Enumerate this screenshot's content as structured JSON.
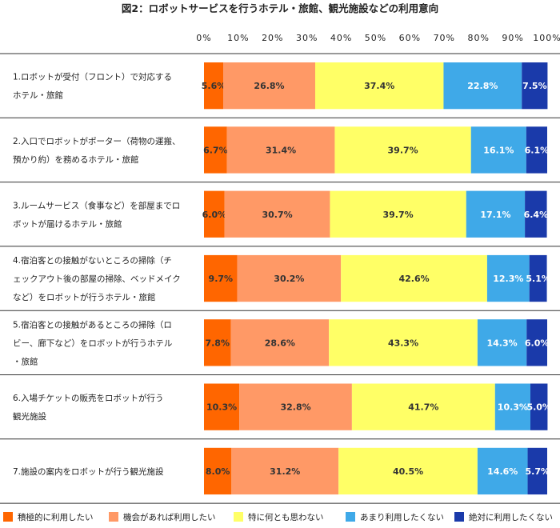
{
  "chart_data": {
    "type": "bar",
    "stacked": true,
    "orientation": "horizontal",
    "title": "図2：ロボットサービスを行うホテル・旅館、観光施設などの利用意向",
    "xlim": [
      0,
      100
    ],
    "x_ticks": [
      "0%",
      "10%",
      "20%",
      "30%",
      "40%",
      "50%",
      "60%",
      "70%",
      "80%",
      "90%",
      "100%"
    ],
    "grid": false,
    "legend_position": "bottom",
    "categories": [
      [
        "1.ロボットが受付（フロント）で対応する",
        "ホテル・旅館"
      ],
      [
        "2.入口でロボットがポーター（荷物の運搬、",
        "預かり約）を務めるホテル・旅館"
      ],
      [
        "3.ルームサービス（食事など）を部屋までロ",
        "ボットが届けるホテル・旅館"
      ],
      [
        "4.宿泊客との接触がないところの掃除（チ",
        "ェックアウト後の部屋の掃除、ベッドメイク",
        "など）をロボットが行うホテル・旅館"
      ],
      [
        "5.宿泊客との接触があるところの掃除（ロ",
        "ビー、廊下など）をロボットが行うホテル",
        "・旅館"
      ],
      [
        "6.入場チケットの販売をロボットが行う",
        "観光施設"
      ],
      [
        "7.施設の案内をロボットが行う観光施設"
      ]
    ],
    "series": [
      {
        "name": "積極的に利用したい",
        "color": "#ff6600",
        "values": [
          5.6,
          6.7,
          6.0,
          9.7,
          7.8,
          10.3,
          8.0
        ],
        "labels": [
          "5.6%",
          "6.7%",
          "6.0%",
          "9.7%",
          "7.8%",
          "10.3%",
          "8.0%"
        ]
      },
      {
        "name": "機会があれば利用したい",
        "color": "#ff9966",
        "values": [
          26.8,
          31.4,
          30.7,
          30.2,
          28.6,
          32.8,
          31.2
        ],
        "labels": [
          "26.8%",
          "31.4%",
          "30.7%",
          "30.2%",
          "28.6%",
          "32.8%",
          "31.2%"
        ]
      },
      {
        "name": "特に何とも思わない",
        "color": "#ffff66",
        "values": [
          37.4,
          39.7,
          39.7,
          42.6,
          43.3,
          41.7,
          40.5
        ],
        "labels": [
          "37.4%",
          "39.7%",
          "39.7%",
          "42.6%",
          "43.3%",
          "41.7%",
          "40.5%"
        ]
      },
      {
        "name": "あまり利用したくない",
        "color": "#3fa9e8",
        "values": [
          22.8,
          16.1,
          17.1,
          12.3,
          14.3,
          10.3,
          14.6
        ],
        "labels": [
          "22.8%",
          "16.1%",
          "17.1%",
          "12.3%",
          "14.3%",
          "10.3%",
          "14.6%"
        ]
      },
      {
        "name": "絶対に利用したくない",
        "color": "#1a3aaa",
        "values": [
          7.5,
          6.1,
          6.4,
          5.1,
          6.0,
          5.0,
          5.7
        ],
        "labels": [
          "7.5%",
          "6.1%",
          "6.4%",
          "5.1%",
          "6.0%",
          "5.0%",
          "5.7%"
        ]
      }
    ]
  }
}
